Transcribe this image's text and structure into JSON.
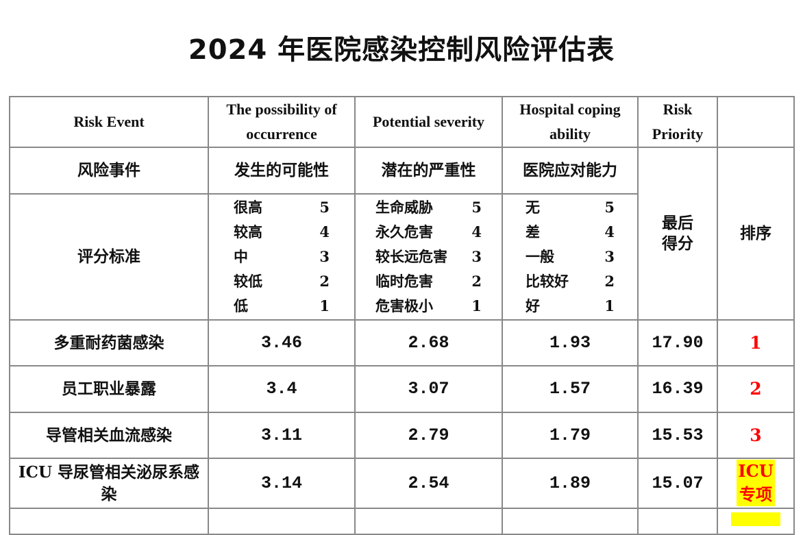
{
  "title": "2024 年医院感染控制风险评估表",
  "header_en": [
    "Risk  Event",
    "The possibility of occurrence",
    "Potential severity",
    "Hospital coping ability",
    "Risk Priority",
    ""
  ],
  "header_zh": [
    "风险事件",
    "发生的可能性",
    "潜在的严重性",
    "医院应对能力"
  ],
  "final_score_label": "最后得分",
  "rank_label": "排序",
  "criteria_label": "评分标准",
  "criteria": {
    "possibility": [
      {
        "label": "很高",
        "score": "5"
      },
      {
        "label": "较高",
        "score": "4"
      },
      {
        "label": "中",
        "score": "3"
      },
      {
        "label": "较低",
        "score": "2"
      },
      {
        "label": "低",
        "score": "1"
      }
    ],
    "severity": [
      {
        "label": "生命威胁",
        "score": "5"
      },
      {
        "label": "永久危害",
        "score": "4"
      },
      {
        "label": "较长远危害",
        "score": "3"
      },
      {
        "label": "临时危害",
        "score": "2"
      },
      {
        "label": "危害极小",
        "score": "1"
      }
    ],
    "coping": [
      {
        "label": "无",
        "score": "5"
      },
      {
        "label": "差",
        "score": "4"
      },
      {
        "label": "一般",
        "score": "3"
      },
      {
        "label": "比较好",
        "score": "2"
      },
      {
        "label": "好",
        "score": "1"
      }
    ]
  },
  "rows": [
    {
      "event": "多重耐药菌感染",
      "possibility": "3.46",
      "severity": "2.68",
      "coping": "1.93",
      "score": "17.90",
      "rank": "1"
    },
    {
      "event": "员工职业暴露",
      "possibility": "3.4",
      "severity": "3.07",
      "coping": "1.57",
      "score": "16.39",
      "rank": "2"
    },
    {
      "event": "导管相关血流感染",
      "possibility": "3.11",
      "severity": "2.79",
      "coping": "1.79",
      "score": "15.53",
      "rank": "3"
    },
    {
      "event": "ICU 导尿管相关泌尿系感染",
      "possibility": "3.14",
      "severity": "2.54",
      "coping": "1.89",
      "score": "15.07",
      "rank": "ICU 专项"
    }
  ],
  "colors": {
    "rank_text": "#ff0000",
    "highlight": "#ffff00",
    "border": "#888888"
  }
}
